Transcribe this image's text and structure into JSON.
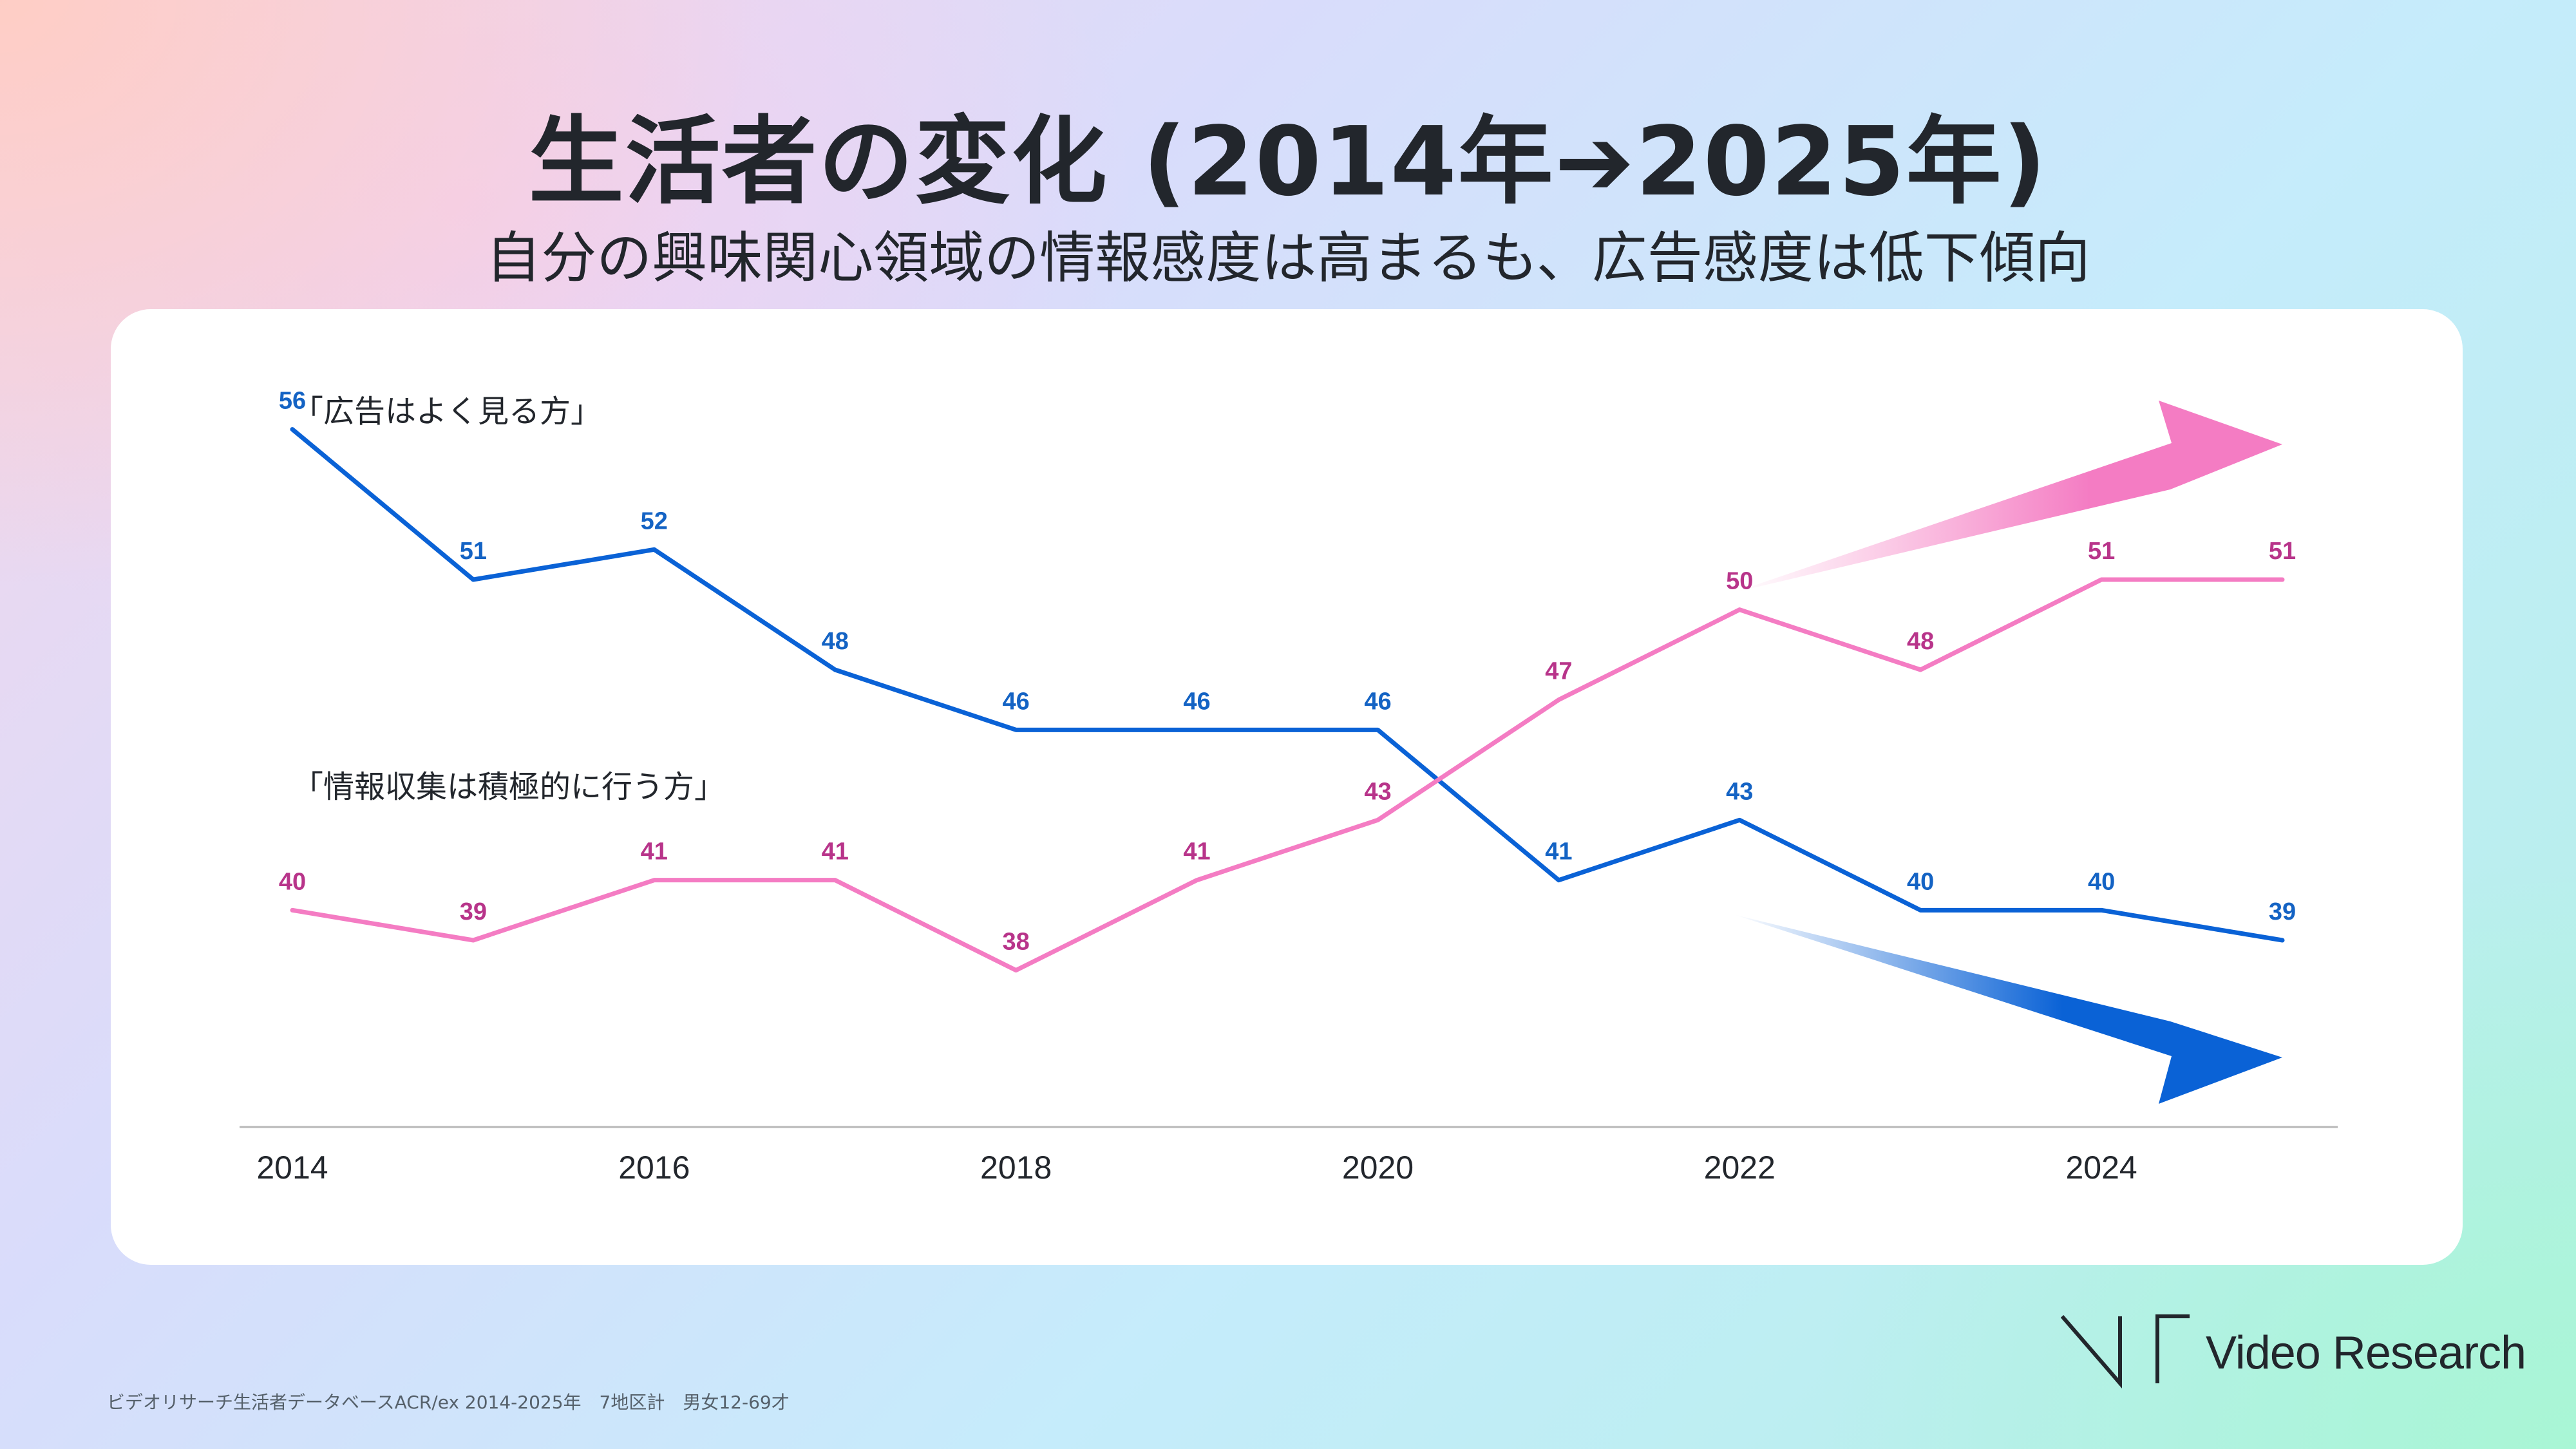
{
  "header": {
    "title": "生活者の変化 (2014年➔2025年)",
    "subtitle": "自分の興味関心領域の情報感度は高まるも、広告感度は低下傾向"
  },
  "chart_data": {
    "type": "line",
    "x": [
      2014,
      2015,
      2016,
      2017,
      2018,
      2019,
      2020,
      2021,
      2022,
      2023,
      2024,
      2025
    ],
    "x_tick_labels": [
      "2014",
      "2016",
      "2018",
      "2020",
      "2022",
      "2024"
    ],
    "xlim": [
      2014,
      2025
    ],
    "ylim": [
      30,
      60
    ],
    "grid": false,
    "series": [
      {
        "name": "「広告はよく見る方」",
        "color": "#0a62d6",
        "label_color": "#1463c4",
        "trend": "down",
        "values": [
          56,
          51,
          52,
          48,
          46,
          46,
          46,
          41,
          43,
          40,
          40,
          39
        ]
      },
      {
        "name": "「情報収集は積極的に行う方」",
        "color": "#f47cc3",
        "label_color": "#b8348a",
        "trend": "up",
        "values": [
          40,
          39,
          41,
          41,
          38,
          41,
          43,
          47,
          50,
          48,
          51,
          51
        ]
      }
    ]
  },
  "footer": {
    "source": "ビデオリサーチ生活者データベースACR/ex 2014-2025年　7地区計　男女12-69才",
    "logo_text": "Video Research"
  }
}
